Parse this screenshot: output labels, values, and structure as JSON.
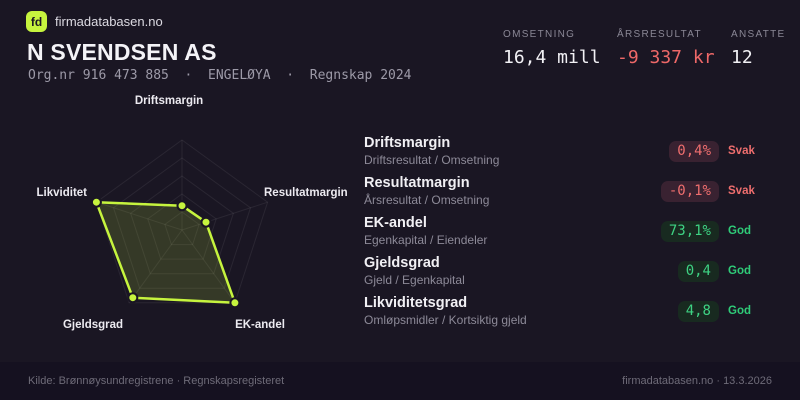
{
  "brand": {
    "logo_text": "fd",
    "site": "firmadatabasen.no"
  },
  "header": {
    "company": "N SVENDSEN AS",
    "org_line": "Org.nr 916 473 885  ·  ENGELØYA  ·  Regnskap 2024"
  },
  "stats": [
    {
      "label": "OMSETNING",
      "value": "16,4 mill",
      "tone": "normal"
    },
    {
      "label": "ÅRSRESULTAT",
      "value": "-9 337 kr",
      "tone": "negative"
    },
    {
      "label": "ANSATTE",
      "value": "12",
      "tone": "normal"
    }
  ],
  "chart_data": {
    "type": "radar",
    "title": "",
    "axes": [
      "Driftsmargin",
      "Resultatmargin",
      "EK-andel",
      "Gjeldsgrad",
      "Likviditet"
    ],
    "values_fraction": [
      0.27,
      0.28,
      1.0,
      0.93,
      1.0
    ],
    "rings": 5,
    "legend": "none",
    "line_color": "#c6f43e",
    "fill_color": "rgba(198,244,62,0.16)",
    "grid_color": "rgba(255,255,255,0.07)",
    "point_color": "#c6f43e",
    "point_outline": "#1a1623"
  },
  "metrics": [
    {
      "name": "Driftsmargin",
      "formula": "Driftsresultat / Omsetning",
      "value": "0,4%",
      "status": "Svak",
      "tone": "bad"
    },
    {
      "name": "Resultatmargin",
      "formula": "Årsresultat / Omsetning",
      "value": "-0,1%",
      "status": "Svak",
      "tone": "bad"
    },
    {
      "name": "EK-andel",
      "formula": "Egenkapital / Eiendeler",
      "value": "73,1%",
      "status": "God",
      "tone": "good"
    },
    {
      "name": "Gjeldsgrad",
      "formula": "Gjeld / Egenkapital",
      "value": "0,4",
      "status": "God",
      "tone": "good"
    },
    {
      "name": "Likviditetsgrad",
      "formula": "Omløpsmidler / Kortsiktig gjeld",
      "value": "4,8",
      "status": "God",
      "tone": "good"
    }
  ],
  "footer": {
    "source": "Kilde: Brønnøysundregistrene · Regnskapsregisteret",
    "site_date": "firmadatabasen.no · 13.3.2026"
  },
  "colors": {
    "background": "#1a1623",
    "accent": "#c6f43e",
    "negative": "#ee6868",
    "positive": "#3ed283"
  }
}
